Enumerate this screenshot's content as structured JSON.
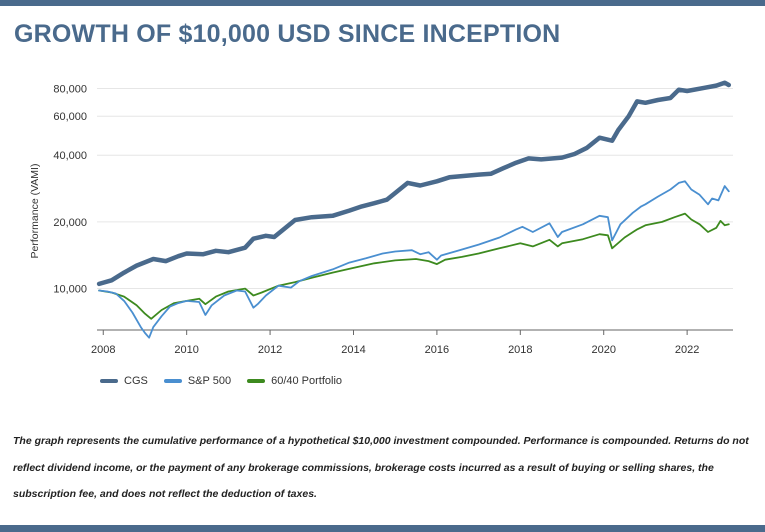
{
  "page": {
    "title": "GROWTH OF $10,000 USD SINCE INCEPTION",
    "footnote": "The graph represents the cumulative performance of a hypothetical $10,000 investment compounded. Performance is compounded. Returns do not reflect dividend income, or the payment of any brokerage commissions, brokerage costs incurred as a result of buying or selling shares, the subscription fee, and does not reflect the deduction of taxes."
  },
  "colors": {
    "brand": "#4a6a8c",
    "CGS": "#4a6a8c",
    "S&P 500": "#4a8fd0",
    "60/40 Portfolio": "#3d8a1f"
  },
  "chart_data": {
    "type": "line",
    "ylabel": "Performance (VAMI)",
    "y_scale": "log",
    "ylim": [
      6500,
      95000
    ],
    "xlim": [
      2007.85,
      2023.1
    ],
    "yticks": [
      10000,
      20000,
      40000,
      60000,
      80000
    ],
    "ytick_labels": [
      "10,000",
      "20,000",
      "40,000",
      "60,000",
      "80,000"
    ],
    "xticks": [
      2008,
      2010,
      2012,
      2014,
      2016,
      2018,
      2020,
      2022
    ],
    "xtick_labels": [
      "2008",
      "2010",
      "2012",
      "2014",
      "2016",
      "2018",
      "2020",
      "2022"
    ],
    "grid": "horizontal",
    "legend": "bottom-left",
    "series": [
      {
        "name": "CGS",
        "x": [
          2007.9,
          2008.2,
          2008.5,
          2008.8,
          2009.2,
          2009.5,
          2009.8,
          2010.0,
          2010.4,
          2010.7,
          2011.0,
          2011.4,
          2011.6,
          2011.9,
          2012.1,
          2012.4,
          2012.6,
          2013.0,
          2013.5,
          2013.9,
          2014.2,
          2014.5,
          2014.8,
          2015.0,
          2015.3,
          2015.6,
          2016.0,
          2016.3,
          2016.6,
          2017.0,
          2017.3,
          2017.6,
          2017.9,
          2018.2,
          2018.5,
          2019.0,
          2019.3,
          2019.6,
          2019.9,
          2020.2,
          2020.35,
          2020.6,
          2020.8,
          2021.0,
          2021.3,
          2021.6,
          2021.8,
          2022.0,
          2022.4,
          2022.7,
          2022.9,
          2023.0
        ],
        "values": [
          10500,
          10900,
          11800,
          12700,
          13600,
          13300,
          14000,
          14400,
          14300,
          14800,
          14600,
          15300,
          16800,
          17300,
          17100,
          19000,
          20400,
          21000,
          21300,
          22500,
          23500,
          24300,
          25200,
          27000,
          30000,
          29200,
          30500,
          31800,
          32200,
          32700,
          33000,
          35000,
          37000,
          38700,
          38300,
          39000,
          40500,
          43200,
          48000,
          46500,
          52000,
          60000,
          70000,
          69000,
          71000,
          72500,
          79000,
          78000,
          80500,
          82500,
          85000,
          83000
        ]
      },
      {
        "name": "S&P 500",
        "x": [
          2007.9,
          2008.1,
          2008.3,
          2008.5,
          2008.7,
          2008.9,
          2009.0,
          2009.1,
          2009.2,
          2009.4,
          2009.6,
          2009.8,
          2010.0,
          2010.3,
          2010.45,
          2010.6,
          2010.9,
          2011.2,
          2011.4,
          2011.6,
          2011.7,
          2011.9,
          2012.2,
          2012.5,
          2012.7,
          2013.0,
          2013.5,
          2013.9,
          2014.3,
          2014.7,
          2015.0,
          2015.4,
          2015.6,
          2015.8,
          2016.0,
          2016.1,
          2016.5,
          2017.0,
          2017.5,
          2017.9,
          2018.05,
          2018.3,
          2018.7,
          2018.9,
          2019.0,
          2019.5,
          2019.9,
          2020.1,
          2020.2,
          2020.4,
          2020.7,
          2020.9,
          2021.0,
          2021.3,
          2021.6,
          2021.8,
          2021.95,
          2022.1,
          2022.3,
          2022.5,
          2022.6,
          2022.75,
          2022.9,
          2023.0
        ],
        "values": [
          9800,
          9700,
          9500,
          8800,
          7800,
          6700,
          6300,
          6000,
          6700,
          7500,
          8300,
          8600,
          8800,
          8700,
          7600,
          8400,
          9300,
          9800,
          9700,
          8200,
          8500,
          9300,
          10300,
          10100,
          10800,
          11400,
          12200,
          13100,
          13700,
          14400,
          14700,
          14900,
          14300,
          14600,
          13500,
          14100,
          14800,
          15800,
          17000,
          18500,
          19000,
          18000,
          19700,
          17100,
          18000,
          19500,
          21300,
          21000,
          16500,
          19500,
          22000,
          23500,
          24000,
          26000,
          28000,
          30000,
          30500,
          28000,
          26500,
          24000,
          25500,
          25000,
          29000,
          27500
        ]
      },
      {
        "name": "60/40 Portfolio",
        "x": [
          2007.9,
          2008.2,
          2008.5,
          2008.8,
          2009.0,
          2009.15,
          2009.4,
          2009.7,
          2010.0,
          2010.3,
          2010.45,
          2010.7,
          2011.0,
          2011.4,
          2011.6,
          2011.8,
          2012.2,
          2012.6,
          2013.0,
          2013.5,
          2014.0,
          2014.5,
          2015.0,
          2015.5,
          2015.8,
          2016.0,
          2016.2,
          2016.6,
          2017.0,
          2017.5,
          2018.0,
          2018.3,
          2018.7,
          2018.9,
          2019.0,
          2019.5,
          2019.9,
          2020.1,
          2020.2,
          2020.5,
          2020.8,
          2021.0,
          2021.4,
          2021.7,
          2021.95,
          2022.1,
          2022.3,
          2022.5,
          2022.7,
          2022.8,
          2022.9,
          2023.0
        ],
        "values": [
          9800,
          9600,
          9200,
          8400,
          7700,
          7300,
          8000,
          8600,
          8800,
          9000,
          8500,
          9200,
          9700,
          10000,
          9300,
          9600,
          10300,
          10700,
          11200,
          11800,
          12400,
          13000,
          13400,
          13600,
          13300,
          12900,
          13500,
          13900,
          14400,
          15200,
          16000,
          15500,
          16600,
          15500,
          16000,
          16700,
          17600,
          17400,
          15200,
          17000,
          18500,
          19300,
          20000,
          21000,
          21800,
          20500,
          19500,
          18000,
          18800,
          20200,
          19300,
          19500
        ]
      }
    ]
  }
}
